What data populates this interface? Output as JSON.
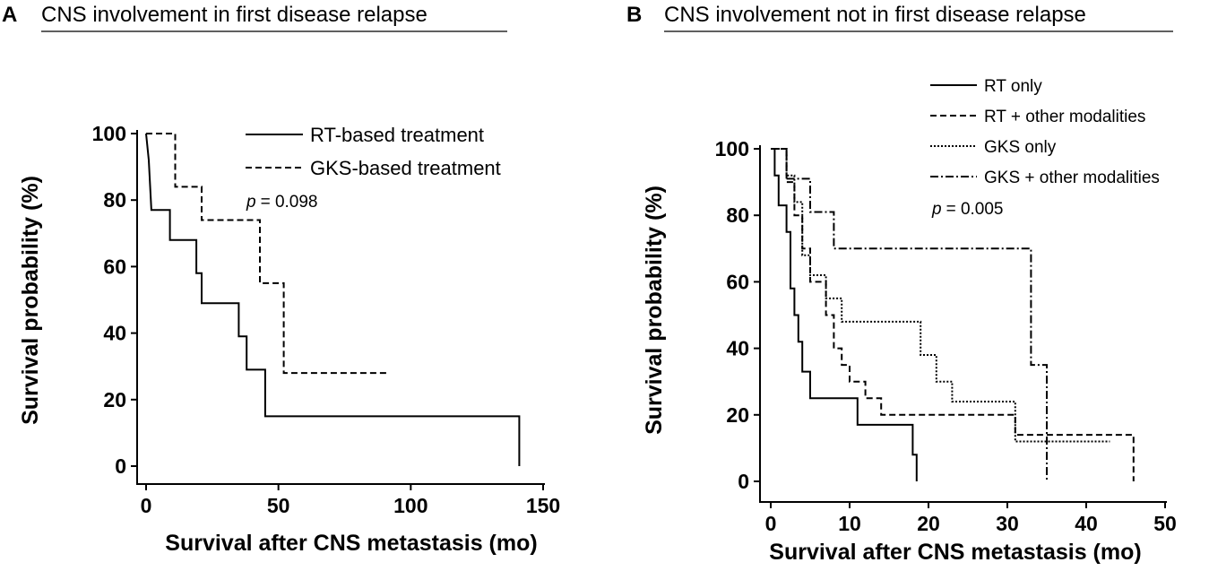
{
  "chart_data": [
    {
      "panel": "A",
      "type": "line",
      "subtype": "kaplan-meier",
      "title": "CNS involvement in first disease relapse",
      "xlabel": "Survival after CNS metastasis (mo)",
      "ylabel": "Survival probability (%)",
      "xlim": [
        0,
        150
      ],
      "ylim": [
        0,
        100
      ],
      "xticks": [
        0,
        50,
        100,
        150
      ],
      "yticks": [
        0,
        20,
        40,
        60,
        80,
        100
      ],
      "p_prefix": "p",
      "p_value_text": "= 0.098",
      "legend_position": "top-right",
      "series": [
        {
          "name": "RT-based treatment",
          "style": "solid",
          "steps": [
            [
              0,
              100
            ],
            [
              1,
              92
            ],
            [
              2,
              77
            ],
            [
              9,
              77
            ],
            [
              9,
              68
            ],
            [
              19,
              68
            ],
            [
              19,
              58
            ],
            [
              21,
              58
            ],
            [
              21,
              49
            ],
            [
              35,
              49
            ],
            [
              35,
              39
            ],
            [
              38,
              39
            ],
            [
              38,
              29
            ],
            [
              45,
              29
            ],
            [
              45,
              15
            ],
            [
              141,
              15
            ],
            [
              141,
              0
            ]
          ]
        },
        {
          "name": "GKS-based treatment",
          "style": "dashed",
          "steps": [
            [
              0,
              100
            ],
            [
              11,
              100
            ],
            [
              11,
              84
            ],
            [
              21,
              84
            ],
            [
              21,
              74
            ],
            [
              43,
              74
            ],
            [
              43,
              55
            ],
            [
              52,
              55
            ],
            [
              52,
              28
            ],
            [
              92,
              28
            ]
          ]
        }
      ]
    },
    {
      "panel": "B",
      "type": "line",
      "subtype": "kaplan-meier",
      "title": "CNS involvement not in first disease relapse",
      "xlabel": "Survival after CNS metastasis (mo)",
      "ylabel": "Survival probability (%)",
      "xlim": [
        0,
        50
      ],
      "ylim": [
        0,
        100
      ],
      "xticks": [
        0,
        10,
        20,
        30,
        40,
        50
      ],
      "yticks": [
        0,
        20,
        40,
        60,
        80,
        100
      ],
      "p_prefix": "p",
      "p_value_text": "= 0.005",
      "legend_position": "top-right",
      "series": [
        {
          "name": "RT only",
          "style": "solid",
          "steps": [
            [
              0,
              100
            ],
            [
              0.5,
              100
            ],
            [
              0.5,
              92
            ],
            [
              1,
              92
            ],
            [
              1,
              83
            ],
            [
              2,
              83
            ],
            [
              2,
              75
            ],
            [
              2.5,
              75
            ],
            [
              2.5,
              58
            ],
            [
              3,
              58
            ],
            [
              3,
              50
            ],
            [
              3.5,
              50
            ],
            [
              3.5,
              42
            ],
            [
              4,
              42
            ],
            [
              4,
              33
            ],
            [
              5,
              33
            ],
            [
              5,
              25
            ],
            [
              11,
              25
            ],
            [
              11,
              17
            ],
            [
              18,
              17
            ],
            [
              18,
              8
            ],
            [
              18.5,
              8
            ],
            [
              18.5,
              0
            ]
          ]
        },
        {
          "name": "RT + other modalities",
          "style": "dashed",
          "steps": [
            [
              0,
              100
            ],
            [
              2,
              100
            ],
            [
              2,
              90
            ],
            [
              3,
              90
            ],
            [
              3,
              80
            ],
            [
              4,
              80
            ],
            [
              4,
              70
            ],
            [
              5,
              70
            ],
            [
              5,
              60
            ],
            [
              7,
              60
            ],
            [
              7,
              50
            ],
            [
              8,
              50
            ],
            [
              8,
              40
            ],
            [
              9,
              40
            ],
            [
              9,
              35
            ],
            [
              10,
              35
            ],
            [
              10,
              30
            ],
            [
              12,
              30
            ],
            [
              12,
              25
            ],
            [
              14,
              25
            ],
            [
              14,
              20
            ],
            [
              31,
              20
            ],
            [
              31,
              14
            ],
            [
              46,
              14
            ],
            [
              46,
              0
            ]
          ]
        },
        {
          "name": "GKS only",
          "style": "dotted",
          "steps": [
            [
              0,
              100
            ],
            [
              2,
              100
            ],
            [
              2,
              92
            ],
            [
              3,
              92
            ],
            [
              3,
              84
            ],
            [
              4,
              84
            ],
            [
              4,
              68
            ],
            [
              5,
              68
            ],
            [
              5,
              62
            ],
            [
              7,
              62
            ],
            [
              7,
              55
            ],
            [
              9,
              55
            ],
            [
              9,
              48
            ],
            [
              19,
              48
            ],
            [
              19,
              38
            ],
            [
              21,
              38
            ],
            [
              21,
              30
            ],
            [
              23,
              30
            ],
            [
              23,
              24
            ],
            [
              31,
              24
            ],
            [
              31,
              12
            ],
            [
              43,
              12
            ]
          ]
        },
        {
          "name": "GKS + other modalities",
          "style": "dashdot",
          "steps": [
            [
              0,
              100
            ],
            [
              2,
              100
            ],
            [
              2,
              91
            ],
            [
              5,
              91
            ],
            [
              5,
              81
            ],
            [
              8,
              81
            ],
            [
              8,
              70
            ],
            [
              33,
              70
            ],
            [
              33,
              35
            ],
            [
              35,
              35
            ],
            [
              35,
              0
            ]
          ]
        }
      ]
    }
  ]
}
